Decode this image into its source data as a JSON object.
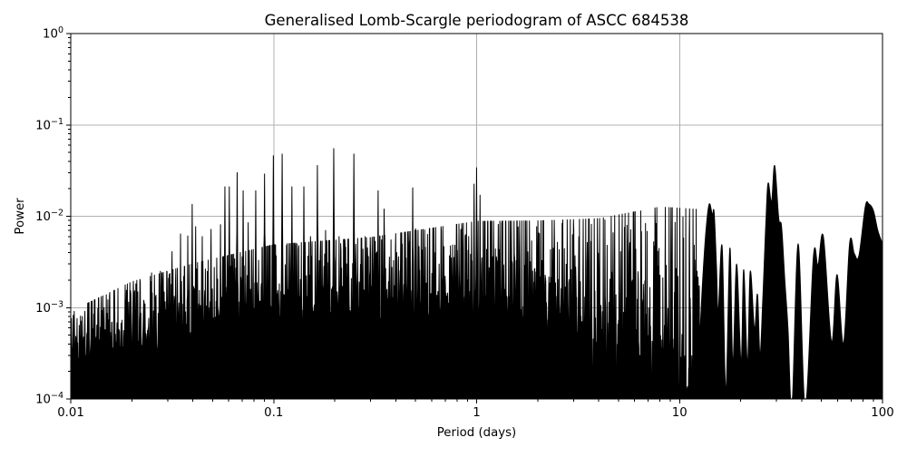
{
  "chart_data": {
    "type": "line",
    "title": "Generalised Lomb-Scargle periodogram of ASCC 684538",
    "xlabel": "Period (days)",
    "ylabel": "Power",
    "x_scale": "log",
    "y_scale": "log",
    "xlim": [
      0.01,
      100
    ],
    "ylim": [
      0.0001,
      1
    ],
    "grid": true,
    "legend": "none",
    "x_tick_labels": [
      "0.01",
      "0.1",
      "1",
      "10",
      "100"
    ],
    "x_tick_values": [
      0.01,
      0.1,
      1,
      10,
      100
    ],
    "y_tick_base": "10",
    "y_tick_exponents": [
      "0",
      "−1",
      "−2",
      "−3",
      "−4"
    ],
    "y_tick_values": [
      1,
      0.1,
      0.01,
      0.001,
      0.0001
    ],
    "colors": {
      "line": "#000000",
      "grid": "#b0b0b0",
      "background": "#ffffff",
      "text": "#000000"
    },
    "main_peaks": [
      [
        0.0114,
        0.0008
      ],
      [
        0.0146,
        0.001
      ],
      [
        0.0165,
        0.0009
      ],
      [
        0.0203,
        0.0012
      ],
      [
        0.0232,
        0.0011
      ],
      [
        0.025,
        0.0024
      ],
      [
        0.0277,
        0.0025
      ],
      [
        0.0316,
        0.0041
      ],
      [
        0.0347,
        0.0064
      ],
      [
        0.0377,
        0.0061
      ],
      [
        0.0397,
        0.0135
      ],
      [
        0.0413,
        0.0077
      ],
      [
        0.0445,
        0.006
      ],
      [
        0.0492,
        0.0072
      ],
      [
        0.0546,
        0.0081
      ],
      [
        0.0575,
        0.021
      ],
      [
        0.0605,
        0.021
      ],
      [
        0.066,
        0.03
      ],
      [
        0.0706,
        0.019
      ],
      [
        0.075,
        0.0085
      ],
      [
        0.0817,
        0.019
      ],
      [
        0.09,
        0.029
      ],
      [
        0.0995,
        0.046
      ],
      [
        0.11,
        0.048
      ],
      [
        0.123,
        0.021
      ],
      [
        0.13,
        0.005
      ],
      [
        0.141,
        0.021
      ],
      [
        0.152,
        0.006
      ],
      [
        0.164,
        0.036
      ],
      [
        0.18,
        0.007
      ],
      [
        0.198,
        0.055
      ],
      [
        0.21,
        0.006
      ],
      [
        0.225,
        0.005
      ],
      [
        0.248,
        0.048
      ],
      [
        0.27,
        0.0045
      ],
      [
        0.282,
        0.006
      ],
      [
        0.3,
        0.004
      ],
      [
        0.327,
        0.019
      ],
      [
        0.35,
        0.012
      ],
      [
        0.424,
        0.006
      ],
      [
        0.484,
        0.0205
      ],
      [
        0.5,
        0.0073
      ],
      [
        0.62,
        0.004
      ],
      [
        0.75,
        0.0035
      ],
      [
        0.88,
        0.006
      ],
      [
        0.97,
        0.0225
      ],
      [
        1.0,
        0.034
      ],
      [
        1.04,
        0.017
      ],
      [
        1.2,
        0.0036
      ],
      [
        1.5,
        0.003
      ],
      [
        2.0,
        0.0035
      ],
      [
        3.05,
        0.0037
      ],
      [
        3.5,
        0.003
      ],
      [
        4.4,
        0.0028
      ],
      [
        5.2,
        0.0026
      ],
      [
        6.0,
        0.0028
      ],
      [
        7.6,
        0.0028
      ],
      [
        8.6,
        0.0029
      ],
      [
        9.8,
        0.0022
      ],
      [
        11.2,
        0.0018
      ],
      [
        12.2,
        0.0025
      ]
    ],
    "noise_envelope": [
      [
        0.01,
        0.00022,
        0.28
      ],
      [
        0.02,
        0.00028,
        0.38
      ],
      [
        0.04,
        0.00036,
        0.42
      ],
      [
        0.1,
        0.0005,
        0.45
      ],
      [
        0.3,
        0.0006,
        0.45
      ],
      [
        1.0,
        0.0007,
        0.5
      ],
      [
        2.0,
        0.00055,
        0.55
      ],
      [
        4.0,
        0.00035,
        0.65
      ],
      [
        8.0,
        0.00022,
        0.8
      ],
      [
        12.6,
        0.00016,
        0.85
      ]
    ],
    "nulls": [
      0.335,
      0.955,
      1.02,
      1.07
    ],
    "smooth_trace": [
      [
        12.6,
        0.0005
      ],
      [
        13.0,
        0.002
      ],
      [
        13.5,
        0.007
      ],
      [
        14.0,
        0.0136
      ],
      [
        14.5,
        0.0104
      ],
      [
        14.8,
        0.011
      ],
      [
        15.2,
        0.0028
      ],
      [
        15.5,
        0.0009
      ],
      [
        16.2,
        0.0047
      ],
      [
        16.9,
        0.00012
      ],
      [
        17.7,
        0.0045
      ],
      [
        18.3,
        0.00024
      ],
      [
        19.1,
        0.003
      ],
      [
        20.1,
        0.00025
      ],
      [
        20.7,
        0.0026
      ],
      [
        21.6,
        0.00024
      ],
      [
        22.3,
        0.0025
      ],
      [
        23.4,
        0.00058
      ],
      [
        24.2,
        0.0014
      ],
      [
        24.9,
        0.0003
      ],
      [
        25.7,
        0.0012
      ],
      [
        26.6,
        0.008
      ],
      [
        27.3,
        0.023
      ],
      [
        28.4,
        0.0143
      ],
      [
        29.4,
        0.036
      ],
      [
        30.8,
        0.0095
      ],
      [
        31.8,
        0.0077
      ],
      [
        33.0,
        0.002
      ],
      [
        34.2,
        0.0006
      ],
      [
        35.8,
        8e-05
      ],
      [
        38.4,
        0.005
      ],
      [
        41.6,
        8e-05
      ],
      [
        45.7,
        0.0037
      ],
      [
        48.1,
        0.0029
      ],
      [
        51.1,
        0.006
      ],
      [
        56.1,
        0.00042
      ],
      [
        59.7,
        0.0023
      ],
      [
        64.2,
        0.0004
      ],
      [
        68.9,
        0.0051
      ],
      [
        72.6,
        0.0039
      ],
      [
        76.5,
        0.0037
      ],
      [
        82.3,
        0.0128
      ],
      [
        85.7,
        0.0136
      ],
      [
        90.2,
        0.0115
      ],
      [
        94.8,
        0.007
      ],
      [
        100,
        0.005
      ]
    ]
  }
}
